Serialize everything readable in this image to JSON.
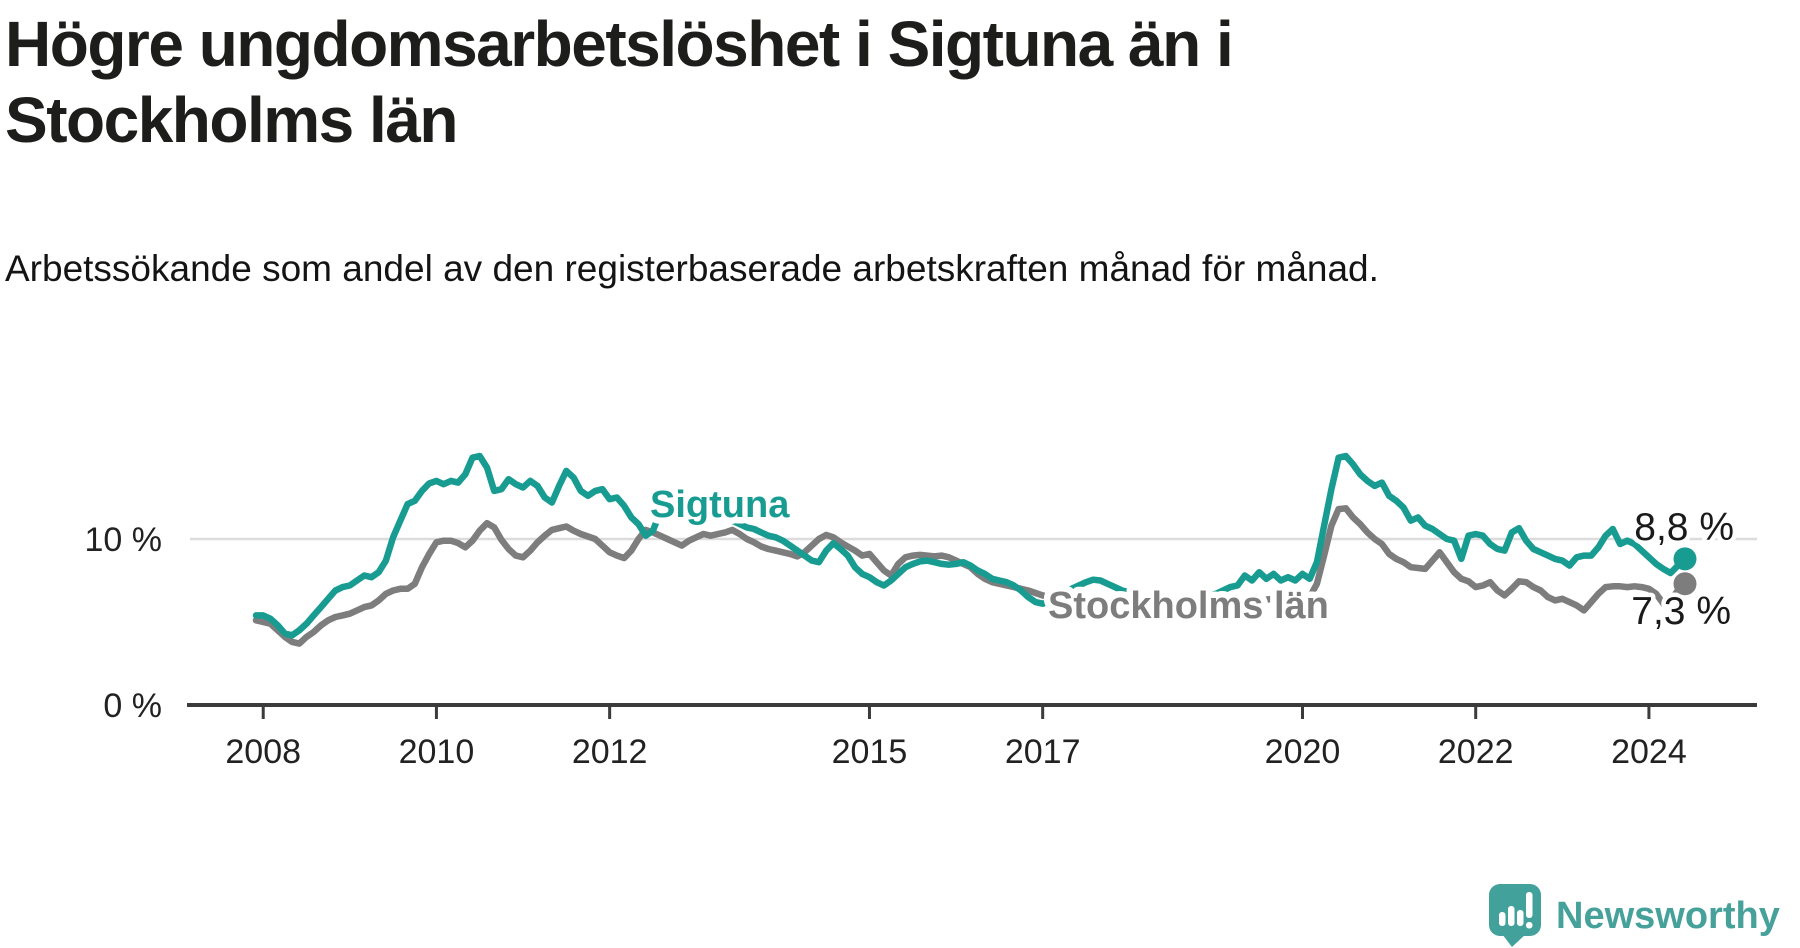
{
  "chart_data": {
    "type": "line",
    "title": "Högre ungdomsarbetslöshet i Sigtuna än i Stockholms län",
    "subtitle": "Arbetssökande som andel av den registerbaserade arbetskraften månad för månad.",
    "x_unit": "month",
    "x_start": "2007-12",
    "x_end": "2024-06",
    "x_ticks": [
      "2008",
      "2010",
      "2012",
      "2015",
      "2017",
      "2020",
      "2022",
      "2024"
    ],
    "y_ticks": [
      {
        "value": 0,
        "label": "0 %"
      },
      {
        "value": 10,
        "label": "10 %"
      }
    ],
    "ylim": [
      0,
      19
    ],
    "grid": "horizontal-10-only",
    "legend_position": "inline-labels",
    "series": [
      {
        "name": "Sigtuna",
        "color": "#189c92",
        "end_value": 8.8,
        "end_label": "8,8 %",
        "values": [
          5.4,
          5.4,
          5.2,
          4.8,
          4.3,
          4.2,
          4.5,
          4.9,
          5.4,
          5.9,
          6.4,
          6.9,
          7.1,
          7.2,
          7.5,
          7.8,
          7.7,
          8,
          8.7,
          10.1,
          11.1,
          12.1,
          12.3,
          12.9,
          13.35,
          13.5,
          13.3,
          13.5,
          13.4,
          13.9,
          14.9,
          15,
          14.3,
          12.9,
          13,
          13.6,
          13.3,
          13.1,
          13.5,
          13.2,
          12.5,
          12.2,
          13.2,
          14.1,
          13.7,
          12.9,
          12.6,
          12.9,
          13,
          12.4,
          12.5,
          12,
          11.3,
          10.9,
          10.2,
          10.5,
          11.6,
          12.85,
          12.6,
          12.3,
          12.1,
          11.9,
          11.7,
          11.6,
          11.5,
          11.3,
          11.1,
          10.9,
          10.7,
          10.6,
          10.4,
          10.2,
          10.1,
          9.9,
          9.6,
          9.3,
          9,
          8.7,
          8.6,
          9.3,
          9.75,
          9.4,
          9,
          8.3,
          7.9,
          7.7,
          7.4,
          7.2,
          7.5,
          7.9,
          8.3,
          8.5,
          8.65,
          8.7,
          8.6,
          8.5,
          8.45,
          8.5,
          8.6,
          8.4,
          8.1,
          7.9,
          7.6,
          7.5,
          7.4,
          7.2,
          6.9,
          6.5,
          6.2,
          6.1,
          6.2,
          6.5,
          6.8,
          7,
          7.2,
          7.4,
          7.55,
          7.5,
          7.3,
          7.1,
          6.9,
          6.8,
          6.7,
          6.6,
          6.5,
          6.45,
          6.4,
          6.4,
          6.4,
          6.45,
          6.5,
          6.55,
          6.6,
          6.7,
          6.9,
          7.1,
          7.2,
          7.8,
          7.5,
          8,
          7.6,
          7.9,
          7.5,
          7.7,
          7.5,
          7.9,
          7.6,
          8.6,
          10.8,
          13,
          14.9,
          15,
          14.5,
          13.9,
          13.5,
          13.2,
          13.4,
          12.6,
          12.3,
          11.9,
          11.1,
          11.3,
          10.8,
          10.6,
          10.3,
          10,
          9.9,
          8.8,
          10.2,
          10.3,
          10.2,
          9.7,
          9.4,
          9.3,
          10.4,
          10.65,
          9.9,
          9.4,
          9.2,
          9,
          8.8,
          8.7,
          8.4,
          8.9,
          9,
          9,
          9.5,
          10.2,
          10.6,
          9.7,
          9.9,
          9.7,
          9.3,
          8.9,
          8.5,
          8.2,
          7.95,
          8.4,
          8.8
        ]
      },
      {
        "name": "Stockholms län",
        "color": "#7d7d7d",
        "end_value": 7.3,
        "end_label": "7,3 %",
        "values": [
          5.1,
          5,
          4.9,
          4.5,
          4.1,
          3.8,
          3.7,
          4.1,
          4.4,
          4.8,
          5.1,
          5.3,
          5.4,
          5.5,
          5.7,
          5.9,
          6,
          6.3,
          6.7,
          6.9,
          7,
          7,
          7.3,
          8.3,
          9.1,
          9.8,
          9.9,
          9.9,
          9.75,
          9.5,
          9.9,
          10.5,
          10.95,
          10.7,
          9.95,
          9.4,
          9,
          8.9,
          9.3,
          9.8,
          10.2,
          10.55,
          10.65,
          10.75,
          10.5,
          10.3,
          10.15,
          10,
          9.6,
          9.2,
          9,
          8.85,
          9.3,
          10,
          10.55,
          10.4,
          10.2,
          10,
          9.8,
          9.6,
          9.9,
          10.1,
          10.3,
          10.2,
          10.3,
          10.4,
          10.55,
          10.3,
          10,
          9.8,
          9.55,
          9.4,
          9.3,
          9.2,
          9.1,
          8.95,
          9.2,
          9.6,
          10,
          10.25,
          10.1,
          9.8,
          9.55,
          9.3,
          9,
          9.1,
          8.6,
          8.1,
          7.8,
          8.5,
          8.9,
          9,
          9.05,
          9,
          8.95,
          9,
          8.9,
          8.7,
          8.5,
          8.3,
          7.9,
          7.6,
          7.4,
          7.3,
          7.2,
          7.1,
          7,
          6.9,
          6.75,
          6.6,
          6.5,
          6.4,
          6.35,
          6.3,
          6.2,
          6.15,
          6.1,
          6.05,
          6,
          5.95,
          5.9,
          5.9,
          5.85,
          5.85,
          5.8,
          5.8,
          5.8,
          5.8,
          5.85,
          5.85,
          5.9,
          5.9,
          5.95,
          6,
          6.05,
          6.1,
          6.2,
          6.25,
          6.3,
          6.3,
          6.35,
          6.4,
          6.4,
          6.45,
          6.5,
          6.5,
          6.5,
          7.3,
          9,
          10.8,
          11.8,
          11.85,
          11.3,
          10.9,
          10.4,
          10,
          9.7,
          9.1,
          8.8,
          8.6,
          8.3,
          8.25,
          8.2,
          8.7,
          9.2,
          8.6,
          8,
          7.6,
          7.45,
          7.1,
          7.2,
          7.4,
          6.9,
          6.6,
          7,
          7.45,
          7.4,
          7.1,
          6.9,
          6.5,
          6.3,
          6.4,
          6.2,
          6,
          5.7,
          6.2,
          6.7,
          7.1,
          7.15,
          7.15,
          7.1,
          7.15,
          7.1,
          7,
          6.7,
          6.1,
          6.3,
          6.9,
          7.3
        ]
      }
    ]
  },
  "branding": {
    "name": "Newsworthy",
    "color": "#47a19b",
    "icon": "newsworthy-speech-bubble-bar-chart-icon"
  }
}
